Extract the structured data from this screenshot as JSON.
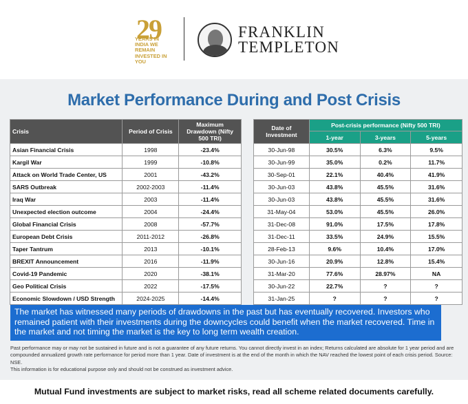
{
  "logo29": {
    "number": "29",
    "tagline": "Years in India We remain invested in you"
  },
  "brand": {
    "line1": "FRANKLIN",
    "line2": "TEMPLETON"
  },
  "title": "Market Performance During and Post Crisis",
  "left_table": {
    "headers": [
      "Crisis",
      "Period of Crisis",
      "Maximum Drawdown (Nifty 500 TRI)"
    ],
    "rows": [
      [
        "Asian Financial Crisis",
        "1998",
        "-23.4%"
      ],
      [
        "Kargil War",
        "1999",
        "-10.8%"
      ],
      [
        "Attack on World Trade Center, US",
        "2001",
        "-43.2%"
      ],
      [
        "SARS Outbreak",
        "2002-2003",
        "-11.4%"
      ],
      [
        "Iraq War",
        "2003",
        "-11.4%"
      ],
      [
        "Unexpected election outcome",
        "2004",
        "-24.4%"
      ],
      [
        "Global Financial Crisis",
        "2008",
        "-57.7%"
      ],
      [
        "European Debt Crisis",
        "2011-2012",
        "-26.8%"
      ],
      [
        "Taper Tantrum",
        "2013",
        "-10.1%"
      ],
      [
        "BREXIT Announcement",
        "2016",
        "-11.9%"
      ],
      [
        "Covid-19 Pandemic",
        "2020",
        "-38.1%"
      ],
      [
        "Geo Political Crisis",
        "2022",
        "-17.5%"
      ],
      [
        "Economic Slowdown / USD Strength",
        "2024-2025",
        "-14.4%"
      ]
    ]
  },
  "right_table": {
    "date_header": "Date of Investment",
    "group_header": "Post-crisis performance (Nifty 500 TRI)",
    "sub_headers": [
      "1-year",
      "3-years",
      "5-years"
    ],
    "rows": [
      [
        "30-Jun-98",
        "30.5%",
        "6.3%",
        "9.5%"
      ],
      [
        "30-Jun-99",
        "35.0%",
        "0.2%",
        "11.7%"
      ],
      [
        "30-Sep-01",
        "22.1%",
        "40.4%",
        "41.9%"
      ],
      [
        "30-Jun-03",
        "43.8%",
        "45.5%",
        "31.6%"
      ],
      [
        "30-Jun-03",
        "43.8%",
        "45.5%",
        "31.6%"
      ],
      [
        "31-May-04",
        "53.0%",
        "45.5%",
        "26.0%"
      ],
      [
        "31-Dec-08",
        "91.0%",
        "17.5%",
        "17.8%"
      ],
      [
        "31-Dec-11",
        "33.5%",
        "24.9%",
        "15.5%"
      ],
      [
        "28-Feb-13",
        "9.6%",
        "10.4%",
        "17.0%"
      ],
      [
        "30-Jun-16",
        "20.9%",
        "12.8%",
        "15.4%"
      ],
      [
        "31-Mar-20",
        "77.6%",
        "28.97%",
        "NA"
      ],
      [
        "30-Jun-22",
        "22.7%",
        "?",
        "?"
      ],
      [
        "31-Jan-25",
        "?",
        "?",
        "?"
      ]
    ]
  },
  "highlight": "The market has witnessed many periods of drawdowns in the past but has eventually recovered. Investors who remained patient with their investments during the downcycles could benefit when the market recovered. Time in the market and not timing the market is the key to long term wealth creation.",
  "disclaimer": {
    "line1": "Past performance may or may not be sustained in future and is not a guarantee of any future returns. You cannot directly invest in an index; Returns calculated are absolute for 1 year period and are compounded annualized growth rate performance for period more than 1 year. Date of investment is at the end of the month in which the NAV reached the lowest point of each crisis period. Source: NSE.",
    "line2": "This information is for educational purpose only and should not be construed as investment advice."
  },
  "footer": "Mutual Fund investments are subject to market risks, read all scheme related documents carefully.",
  "colors": {
    "title": "#2e6dab",
    "header_dark": "#535353",
    "header_teal": "#1aa087",
    "highlight_bg": "#1c6dd0"
  }
}
